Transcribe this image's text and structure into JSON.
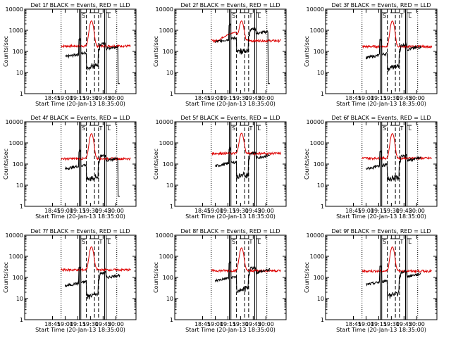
{
  "chart_data": [
    {
      "type": "line",
      "title": "Det 1f BLACK = Events, RED = LLD",
      "xlabel": "Start Time (20-Jan-13 18:35:00)",
      "ylabel": "Counts/sec",
      "xticks": [
        "18:45",
        "19:00",
        "19:15",
        "19:30",
        "19:45",
        "20:00"
      ],
      "yticks": [
        "1",
        "10",
        "100",
        "1000",
        "10000"
      ],
      "ylim": [
        1,
        10000
      ],
      "yscale": "log",
      "interval_labels": [
        "S",
        "T",
        "L"
      ],
      "red_baseline": 180,
      "red_peak": 2600,
      "black_base": 55,
      "black_end_drop": true
    },
    {
      "type": "line",
      "title": "Det 2f BLACK = Events, RED = LLD",
      "xlabel": "Start Time (20-Jan-13 18:35:00)",
      "ylabel": "Counts/sec",
      "xticks": [
        "18:45",
        "19:00",
        "19:15",
        "19:30",
        "19:45",
        "20:00"
      ],
      "yticks": [
        "1",
        "10",
        "100",
        "1000",
        "10000"
      ],
      "ylim": [
        1,
        10000
      ],
      "yscale": "log",
      "interval_labels": [
        "S",
        "T",
        "L"
      ],
      "red_baseline": 320,
      "red_peak": 2400,
      "black_base": 280,
      "black_end_drop": true
    },
    {
      "type": "line",
      "title": "Det 3f BLACK = Events, RED = LLD",
      "xlabel": "Start Time (20-Jan-13 18:35:00)",
      "ylabel": "Counts/sec",
      "xticks": [
        "18:45",
        "19:00",
        "19:15",
        "19:30",
        "19:45",
        "20:00"
      ],
      "yticks": [
        "1",
        "10",
        "100",
        "1000",
        "10000"
      ],
      "ylim": [
        1,
        10000
      ],
      "yscale": "log",
      "interval_labels": [
        "S",
        "T",
        "L"
      ],
      "red_baseline": 170,
      "red_peak": 2600,
      "black_base": 50,
      "black_end_drop": false
    },
    {
      "type": "line",
      "title": "Det 4f BLACK = Events, RED = LLD",
      "xlabel": "Start Time (20-Jan-13 18:35:00)",
      "ylabel": "Counts/sec",
      "xticks": [
        "18:45",
        "19:00",
        "19:15",
        "19:30",
        "19:45",
        "20:00"
      ],
      "yticks": [
        "1",
        "10",
        "100",
        "1000",
        "10000"
      ],
      "ylim": [
        1,
        10000
      ],
      "yscale": "log",
      "interval_labels": [
        "S",
        "T",
        "L"
      ],
      "red_baseline": 180,
      "red_peak": 2600,
      "black_base": 60,
      "black_end_drop": true
    },
    {
      "type": "line",
      "title": "Det 5f BLACK = Events, RED = LLD",
      "xlabel": "Start Time (20-Jan-13 18:35:00)",
      "ylabel": "Counts/sec",
      "xticks": [
        "18:45",
        "19:00",
        "19:15",
        "19:30",
        "19:45",
        "20:00"
      ],
      "yticks": [
        "1",
        "10",
        "100",
        "1000",
        "10000"
      ],
      "ylim": [
        1,
        10000
      ],
      "yscale": "log",
      "interval_labels": [
        "S",
        "T",
        "L"
      ],
      "red_baseline": 320,
      "red_peak": 2600,
      "black_base": 80,
      "black_end_drop": false
    },
    {
      "type": "line",
      "title": "Det 6f BLACK = Events, RED = LLD",
      "xlabel": "Start Time (20-Jan-13 18:35:00)",
      "ylabel": "Counts/sec",
      "xticks": [
        "18:45",
        "19:00",
        "19:15",
        "19:30",
        "19:45",
        "20:00"
      ],
      "yticks": [
        "1",
        "10",
        "100",
        "1000",
        "10000"
      ],
      "ylim": [
        1,
        10000
      ],
      "yscale": "log",
      "interval_labels": [
        "S",
        "T",
        "L"
      ],
      "red_baseline": 190,
      "red_peak": 2600,
      "black_base": 60,
      "black_end_drop": false
    },
    {
      "type": "line",
      "title": "Det 7f BLACK = Events, RED = LLD",
      "xlabel": "Start Time (20-Jan-13 18:35:00)",
      "ylabel": "Counts/sec",
      "xticks": [
        "18:45",
        "19:00",
        "19:15",
        "19:30",
        "19:45",
        "20:00"
      ],
      "yticks": [
        "1",
        "10",
        "100",
        "1000",
        "10000"
      ],
      "ylim": [
        1,
        10000
      ],
      "yscale": "log",
      "interval_labels": [
        "S",
        "T",
        "L"
      ],
      "red_baseline": 230,
      "red_peak": 2600,
      "black_base": 40,
      "black_end_drop": false
    },
    {
      "type": "line",
      "title": "Det 8f BLACK = Events, RED = LLD",
      "xlabel": "Start Time (20-Jan-13 18:35:00)",
      "ylabel": "Counts/sec",
      "xticks": [
        "18:45",
        "19:00",
        "19:15",
        "19:30",
        "19:45",
        "20:00"
      ],
      "yticks": [
        "1",
        "10",
        "100",
        "1000",
        "10000"
      ],
      "ylim": [
        1,
        10000
      ],
      "yscale": "log",
      "interval_labels": [
        "S",
        "T",
        "L"
      ],
      "red_baseline": 210,
      "red_peak": 2300,
      "black_base": 70,
      "black_end_drop": false
    },
    {
      "type": "line",
      "title": "Det 9f BLACK = Events, RED = LLD",
      "xlabel": "Start Time (20-Jan-13 18:35:00)",
      "ylabel": "Counts/sec",
      "xticks": [
        "18:45",
        "19:00",
        "19:15",
        "19:30",
        "19:45",
        "20:00"
      ],
      "yticks": [
        "1",
        "10",
        "100",
        "1000",
        "10000"
      ],
      "ylim": [
        1,
        10000
      ],
      "yscale": "log",
      "interval_labels": [
        "S",
        "T",
        "L"
      ],
      "red_baseline": 200,
      "red_peak": 2600,
      "black_base": 45,
      "black_end_drop": false
    }
  ],
  "colors": {
    "red": "#dd0000",
    "black": "#000000",
    "axis": "#000000"
  }
}
